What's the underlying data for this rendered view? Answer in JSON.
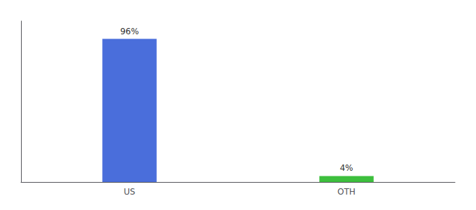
{
  "chart_data": {
    "type": "bar",
    "categories": [
      "US",
      "OTH"
    ],
    "values": [
      96,
      4
    ],
    "value_labels": [
      "96%",
      "4%"
    ],
    "colors": [
      "#4a6edb",
      "#3dbf3d"
    ],
    "ylim": [
      0,
      108
    ],
    "grid": false,
    "tick_labels": "x",
    "data_labels": true
  }
}
